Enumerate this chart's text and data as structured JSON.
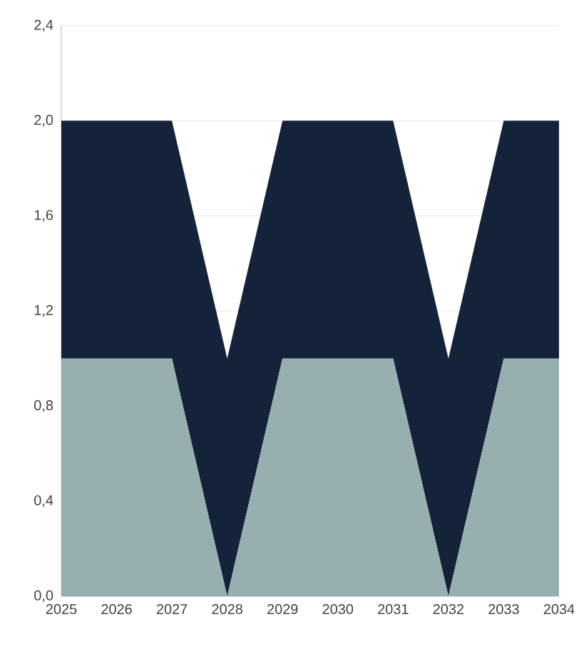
{
  "chart_data": {
    "type": "area",
    "stacked": true,
    "grid": "y",
    "x": [
      2025,
      2026,
      2027,
      2028,
      2029,
      2030,
      2031,
      2032,
      2033,
      2034
    ],
    "series": [
      {
        "color": "#97afae",
        "values": [
          1,
          1,
          1,
          0,
          1,
          1,
          1,
          0,
          1,
          1
        ]
      },
      {
        "color": "#15233a",
        "values": [
          1,
          1,
          1,
          1,
          1,
          1,
          1,
          1,
          1,
          1
        ]
      }
    ],
    "xlim": [
      2025,
      2034
    ],
    "xticks": [
      2025,
      2026,
      2027,
      2028,
      2029,
      2030,
      2031,
      2032,
      2033,
      2034
    ],
    "ylim": [
      0,
      2.4
    ],
    "yticks": [
      {
        "value": 0,
        "label": "0,0"
      },
      {
        "value": 0.4,
        "label": "0,4"
      },
      {
        "value": 0.8,
        "label": "0,8"
      },
      {
        "value": 1.2,
        "label": "1,2"
      },
      {
        "value": 1.6,
        "label": "1,6"
      },
      {
        "value": 2.0,
        "label": "2,0"
      },
      {
        "value": 2.4,
        "label": "2,4"
      }
    ]
  }
}
